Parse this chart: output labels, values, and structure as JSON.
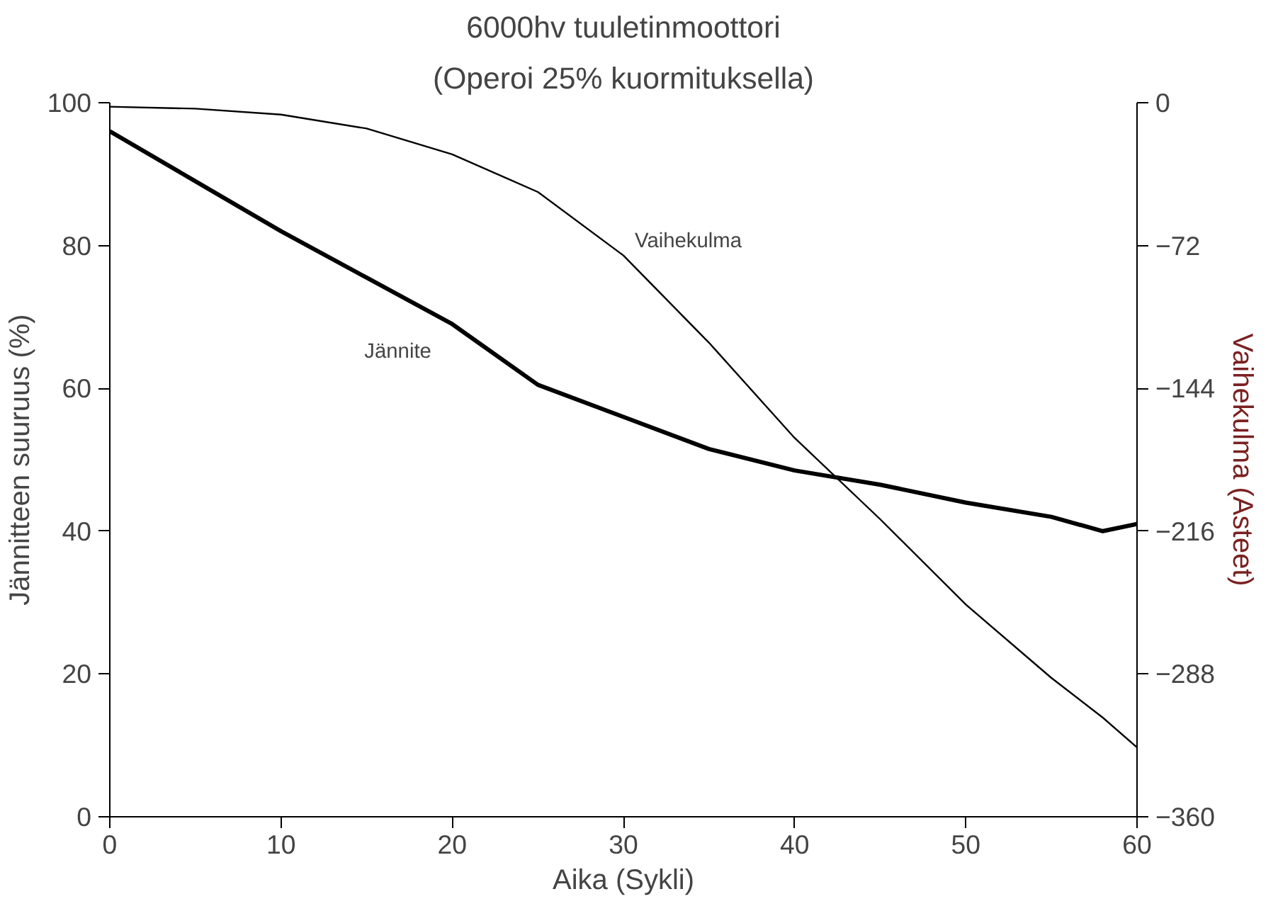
{
  "chart_data": {
    "type": "line",
    "title": "6000hv tuuletinmoottori",
    "subtitle": "(Operoi 25% kuormituksella)",
    "xlabel": "Aika (Sykli)",
    "ylabel": "Jännitteen suuruus (%)",
    "y2label": "Vaihekulma (Asteet)",
    "x": [
      0,
      5,
      10,
      15,
      20,
      25,
      30,
      35,
      40,
      45,
      50,
      55,
      58,
      60
    ],
    "series": [
      {
        "name": "Jännite",
        "color": "#000000",
        "values": [
          96,
          89,
          82,
          75.5,
          69,
          60.5,
          56,
          51.5,
          48.5,
          46.5,
          44,
          42,
          40,
          41
        ]
      },
      {
        "name": "Vaihekulma",
        "color": "#000000",
        "axis": "y2",
        "values": [
          -2,
          -3,
          -6,
          -13,
          -26,
          -45,
          -77,
          -121,
          -169,
          -210,
          -253,
          -290,
          -310,
          -325
        ]
      }
    ],
    "xlim": [
      0,
      60
    ],
    "xticks": [
      0,
      10,
      20,
      30,
      40,
      50,
      60
    ],
    "ylim": [
      0,
      100
    ],
    "yticks": [
      0,
      20,
      40,
      60,
      80,
      100
    ],
    "y2lim": [
      -360,
      0
    ],
    "y2ticks": [
      -360,
      -288,
      -216,
      -144,
      -72,
      0
    ],
    "grid": false,
    "legend": false
  }
}
